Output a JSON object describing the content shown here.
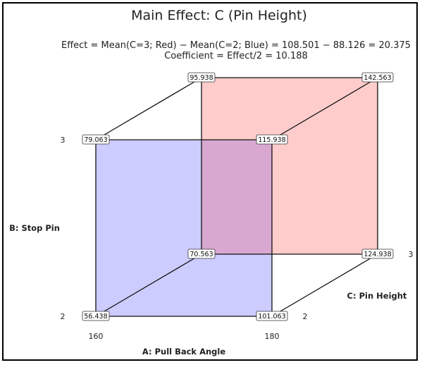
{
  "title": "Main Effect: C (Pin Height)",
  "subtitle_line1": "Effect = Mean(C=3; Red) − Mean(C=2; Blue) = 108.501 − 88.126 = 20.375",
  "subtitle_line2": "Coefficient = Effect/2 = 10.188",
  "axes": {
    "a": {
      "label": "A: Pull Back Angle",
      "low": "160",
      "high": "180"
    },
    "b": {
      "label": "B: Stop Pin",
      "low": "2",
      "high": "3"
    },
    "c": {
      "label": "C: Pin Height",
      "low": "2",
      "high": "3"
    }
  },
  "colors": {
    "c_low_face": "#ccccff",
    "c_high_face": "#ffcccc",
    "overlap": "#d8a8d0"
  },
  "vertices": {
    "a_low_b_low_c_low": "56.438",
    "a_high_b_low_c_low": "101.063",
    "a_low_b_high_c_low": "79.063",
    "a_high_b_high_c_low": "115.938",
    "a_low_b_low_c_high": "70.563",
    "a_high_b_low_c_high": "124.938",
    "a_low_b_high_c_high": "95.938",
    "a_high_b_high_c_high": "142.563"
  }
}
